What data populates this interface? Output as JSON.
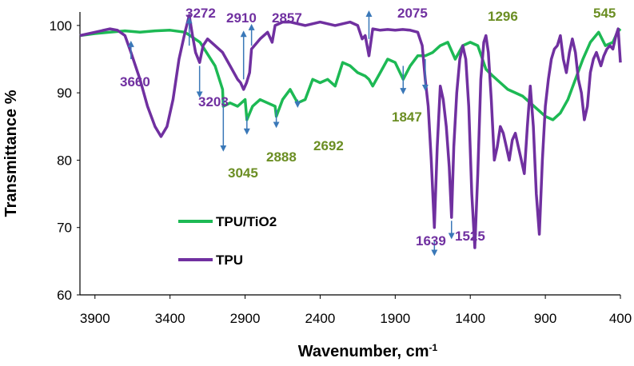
{
  "chart_data": {
    "type": "line",
    "title": "",
    "xlabel": "Wavenumber, cm",
    "xlabel_superscript": "-1",
    "ylabel": "Transmittance %",
    "xlim": [
      4000,
      400
    ],
    "x_reversed": true,
    "ylim": [
      60,
      102
    ],
    "x_ticks": [
      "3900",
      "3400",
      "2900",
      "2400",
      "1900",
      "1400",
      "900",
      "400"
    ],
    "x_tick_values": [
      3900,
      3400,
      2900,
      2400,
      1900,
      1400,
      900,
      400
    ],
    "y_ticks": [
      "60",
      "70",
      "80",
      "90",
      "100"
    ],
    "y_tick_values": [
      60,
      70,
      80,
      90,
      100
    ],
    "grid": false,
    "legend_position": "bottom-left",
    "series": [
      {
        "name": "TPU/TiO2",
        "color": "#1db954",
        "x": [
          4000,
          3900,
          3800,
          3700,
          3600,
          3500,
          3400,
          3300,
          3200,
          3100,
          3050,
          3045,
          3000,
          2950,
          2900,
          2888,
          2850,
          2800,
          2750,
          2700,
          2692,
          2650,
          2600,
          2550,
          2500,
          2450,
          2400,
          2350,
          2300,
          2250,
          2200,
          2150,
          2100,
          2075,
          2050,
          2000,
          1950,
          1900,
          1847,
          1800,
          1750,
          1700,
          1650,
          1600,
          1550,
          1500,
          1450,
          1400,
          1350,
          1296,
          1250,
          1200,
          1150,
          1100,
          1050,
          1000,
          950,
          900,
          850,
          800,
          750,
          700,
          650,
          600,
          545,
          500,
          450,
          420,
          400
        ],
        "values": [
          98.5,
          98.8,
          99.0,
          99.2,
          99.0,
          99.2,
          99.3,
          99.0,
          97.5,
          94.0,
          90.5,
          88.0,
          88.5,
          88.0,
          89.0,
          86.0,
          88.0,
          89.0,
          88.5,
          88.0,
          86.5,
          89.0,
          90.5,
          88.5,
          89.0,
          92.0,
          91.5,
          92.0,
          91.0,
          94.5,
          94.0,
          93.0,
          92.5,
          92.0,
          91.0,
          93.0,
          95.0,
          94.5,
          92.0,
          94.0,
          95.5,
          95.5,
          96.0,
          97.0,
          97.5,
          95.0,
          97.0,
          97.5,
          97.0,
          93.5,
          92.5,
          91.5,
          90.5,
          90.0,
          89.5,
          88.5,
          87.5,
          86.5,
          86.0,
          87.0,
          89.0,
          92.0,
          95.0,
          97.5,
          99.0,
          97.0,
          97.5,
          99.0,
          99.5
        ]
      },
      {
        "name": "TPU",
        "color": "#7030a0",
        "x": [
          4000,
          3900,
          3800,
          3750,
          3700,
          3660,
          3600,
          3550,
          3500,
          3460,
          3420,
          3380,
          3340,
          3300,
          3272,
          3250,
          3230,
          3203,
          3180,
          3150,
          3100,
          3050,
          3000,
          2950,
          2930,
          2910,
          2890,
          2870,
          2857,
          2800,
          2750,
          2720,
          2700,
          2650,
          2600,
          2500,
          2400,
          2300,
          2200,
          2150,
          2120,
          2100,
          2075,
          2050,
          2000,
          1950,
          1900,
          1850,
          1800,
          1750,
          1720,
          1700,
          1680,
          1660,
          1639,
          1620,
          1600,
          1580,
          1560,
          1540,
          1525,
          1510,
          1490,
          1470,
          1450,
          1430,
          1410,
          1390,
          1370,
          1350,
          1330,
          1310,
          1296,
          1280,
          1260,
          1240,
          1220,
          1200,
          1180,
          1160,
          1140,
          1120,
          1100,
          1080,
          1060,
          1040,
          1020,
          1000,
          980,
          960,
          940,
          920,
          900,
          880,
          860,
          840,
          820,
          800,
          780,
          760,
          740,
          720,
          700,
          680,
          660,
          640,
          620,
          600,
          580,
          560,
          545,
          530,
          510,
          490,
          470,
          450,
          430,
          415,
          400
        ],
        "values": [
          98.5,
          99.0,
          99.5,
          99.3,
          98.5,
          96.0,
          92.0,
          88.0,
          85.0,
          83.5,
          85.0,
          89.0,
          95.0,
          99.0,
          101.5,
          98.5,
          96.0,
          94.5,
          97.0,
          98.0,
          97.0,
          96.0,
          94.0,
          92.0,
          91.5,
          90.5,
          91.5,
          93.0,
          96.5,
          98.0,
          99.0,
          97.5,
          100.0,
          100.5,
          100.5,
          100.0,
          100.5,
          100.0,
          100.5,
          100.0,
          98.0,
          98.5,
          95.5,
          99.5,
          99.3,
          99.4,
          99.3,
          99.4,
          99.3,
          99.0,
          97.0,
          92.0,
          88.0,
          80.0,
          70.0,
          82.0,
          91.0,
          89.0,
          85.0,
          79.0,
          71.5,
          82.0,
          90.0,
          95.0,
          97.0,
          95.0,
          88.0,
          75.0,
          67.0,
          78.0,
          92.0,
          97.5,
          98.5,
          96.0,
          89.0,
          80.0,
          82.0,
          85.0,
          84.0,
          82.0,
          80.0,
          83.0,
          84.0,
          82.0,
          80.0,
          78.0,
          85.0,
          91.0,
          85.0,
          75.0,
          69.0,
          80.0,
          88.0,
          92.0,
          95.0,
          96.5,
          97.0,
          98.5,
          95.0,
          93.0,
          96.0,
          98.0,
          96.0,
          92.0,
          90.0,
          86.0,
          88.0,
          93.0,
          95.0,
          96.0,
          95.0,
          94.0,
          95.5,
          96.5,
          97.0,
          96.5,
          98.5,
          99.5,
          94.5
        ]
      }
    ],
    "annotations": [
      {
        "text": "3272",
        "color": "#7030a0",
        "x": 3272,
        "y": 101.5
      },
      {
        "text": "2910",
        "color": "#7030a0",
        "x": 2910,
        "y": 90.5
      },
      {
        "text": "2857",
        "color": "#7030a0",
        "x": 2857,
        "y": 96.5
      },
      {
        "text": "2075",
        "color": "#7030a0",
        "x": 2075,
        "y": 95.5
      },
      {
        "text": "1296",
        "color": "#6b8e23",
        "x": 1296,
        "y": 93.5
      },
      {
        "text": "545",
        "color": "#6b8e23",
        "x": 545,
        "y": 99.0
      },
      {
        "text": "3660",
        "color": "#7030a0",
        "x": 3660,
        "y": 96.0
      },
      {
        "text": "3203",
        "color": "#7030a0",
        "x": 3203,
        "y": 94.5
      },
      {
        "text": "1847",
        "color": "#6b8e23",
        "x": 1847,
        "y": 92.0
      },
      {
        "text": "3045",
        "color": "#6b8e23",
        "x": 3045,
        "y": 88.0
      },
      {
        "text": "2888",
        "color": "#6b8e23",
        "x": 2888,
        "y": 86.0
      },
      {
        "text": "2692",
        "color": "#6b8e23",
        "x": 2692,
        "y": 86.5
      },
      {
        "text": "1639",
        "color": "#7030a0",
        "x": 1639,
        "y": 70.0
      },
      {
        "text": "1525",
        "color": "#7030a0",
        "x": 1525,
        "y": 71.5
      }
    ]
  }
}
